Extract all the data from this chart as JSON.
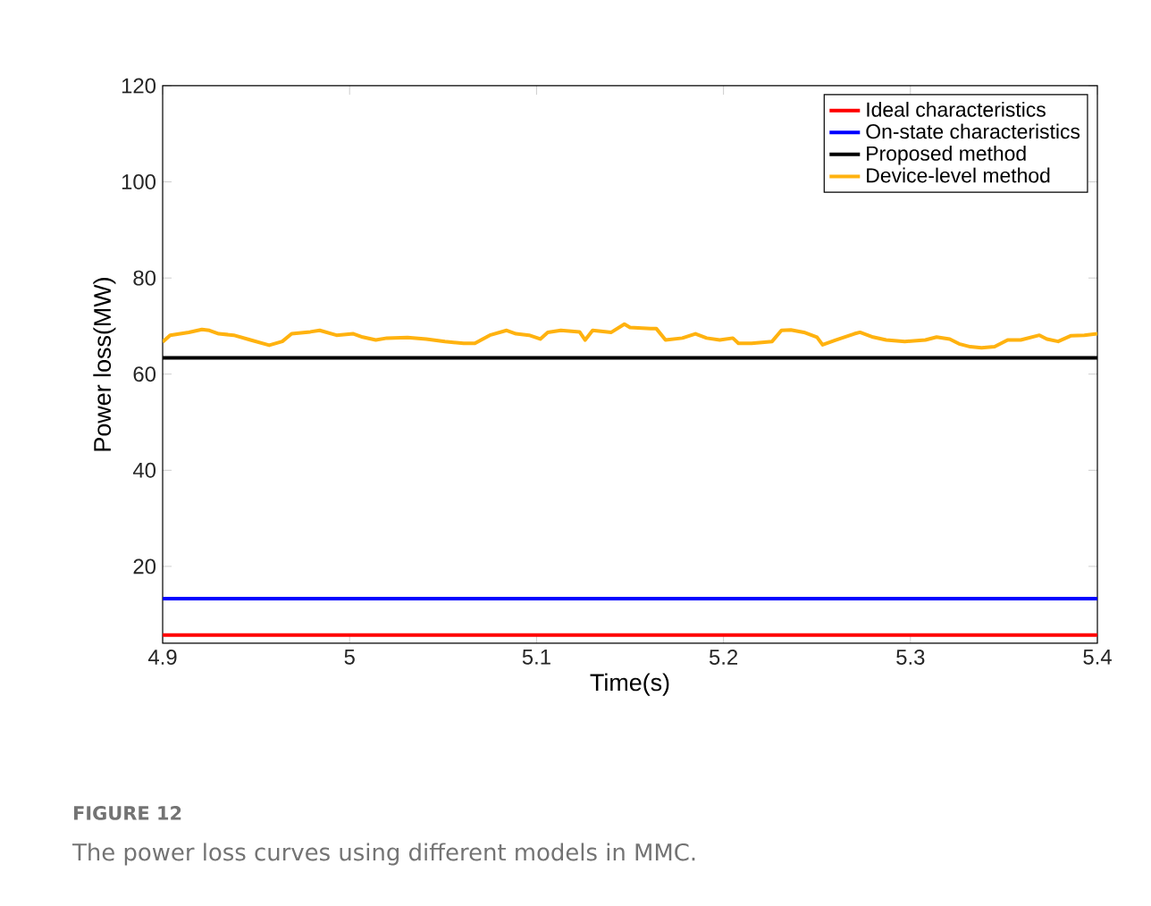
{
  "chart_data": {
    "type": "line",
    "xlabel": "Time(s)",
    "ylabel": "Power loss(MW)",
    "annotations": [
      "**FIGURE 12**",
      "The power loss curves using different models in MMC."
    ],
    "xlim": [
      4.9,
      5.4
    ],
    "xticks": [
      4.9,
      5,
      5.1,
      5.2,
      5.3,
      5.4
    ],
    "ylim": [
      4,
      120
    ],
    "yticks": [
      20,
      40,
      60,
      80,
      100,
      120
    ],
    "legend": "top right",
    "grid": false,
    "line_style": "solid",
    "marker": "none",
    "series": [
      {
        "name": "Ideal characteristics",
        "color": "#ff0000",
        "x": [
          4.9,
          5.4
        ],
        "values": [
          5.7,
          5.7
        ]
      },
      {
        "name": "On-state characteristics",
        "color": "#0000ff",
        "x": [
          4.9,
          5.4
        ],
        "values": [
          13.3,
          13.3
        ]
      },
      {
        "name": "Proposed method",
        "color": "#000000",
        "x": [
          4.9,
          5.4
        ],
        "values": [
          63.4,
          63.4
        ]
      },
      {
        "name": "Device-level method",
        "color": "#ffb20f",
        "x": [
          4.9,
          4.904,
          4.914,
          4.921,
          4.925,
          4.93,
          4.938,
          4.947,
          4.957,
          4.964,
          4.969,
          4.979,
          4.984,
          4.993,
          5.002,
          5.007,
          5.014,
          5.02,
          5.031,
          5.041,
          5.051,
          5.061,
          5.067,
          5.075,
          5.084,
          5.089,
          5.096,
          5.102,
          5.106,
          5.113,
          5.123,
          5.126,
          5.13,
          5.14,
          5.147,
          5.15,
          5.161,
          5.164,
          5.169,
          5.178,
          5.185,
          5.191,
          5.198,
          5.205,
          5.208,
          5.215,
          5.226,
          5.231,
          5.236,
          5.243,
          5.25,
          5.253,
          5.26,
          5.27,
          5.273,
          5.28,
          5.287,
          5.297,
          5.308,
          5.314,
          5.321,
          5.326,
          5.332,
          5.338,
          5.345,
          5.352,
          5.359,
          5.369,
          5.373,
          5.379,
          5.386,
          5.393,
          5.4
        ],
        "values": [
          66.7,
          68.1,
          68.7,
          69.3,
          69.1,
          68.4,
          68.1,
          67.1,
          66.0,
          66.8,
          68.4,
          68.8,
          69.1,
          68.1,
          68.4,
          67.7,
          67.1,
          67.5,
          67.6,
          67.3,
          66.8,
          66.4,
          66.4,
          68.1,
          69.1,
          68.4,
          68.1,
          67.3,
          68.7,
          69.1,
          68.8,
          67.1,
          69.1,
          68.7,
          70.4,
          69.7,
          69.5,
          69.5,
          67.1,
          67.5,
          68.4,
          67.5,
          67.1,
          67.5,
          66.4,
          66.4,
          66.8,
          69.1,
          69.2,
          68.7,
          67.7,
          66.1,
          67.1,
          68.4,
          68.7,
          67.7,
          67.1,
          66.8,
          67.1,
          67.7,
          67.3,
          66.3,
          65.7,
          65.5,
          65.7,
          67.1,
          67.1,
          68.1,
          67.3,
          66.8,
          68.0,
          68.1,
          68.4
        ]
      }
    ]
  }
}
